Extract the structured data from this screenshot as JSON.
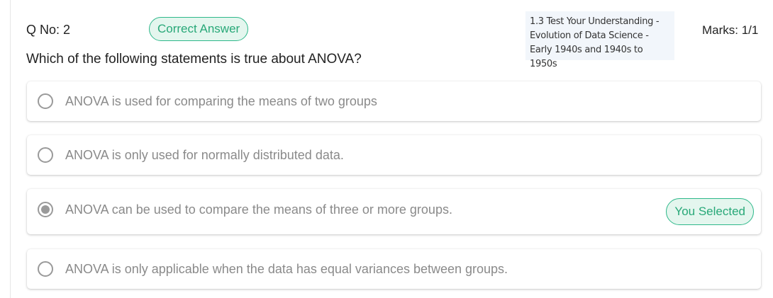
{
  "question_header": {
    "number": "Q No: 2",
    "status": "Correct Answer",
    "topic": "1.3 Test Your Understanding - Evolution of Data Science - Early 1940s and 1940s to 1950s",
    "marks": "Marks: 1/1"
  },
  "question": {
    "text": "Which of the following statements is true about ANOVA?"
  },
  "options": [
    {
      "text": "ANOVA is used for comparing the means of two groups",
      "selected": false
    },
    {
      "text": "ANOVA is only used for normally distributed data.",
      "selected": false
    },
    {
      "text": "ANOVA can be used to compare the means of three or more groups.",
      "selected": true,
      "badge": "You Selected"
    },
    {
      "text": "ANOVA is only applicable when the data has equal variances between groups.",
      "selected": false
    }
  ],
  "colors": {
    "accent_green": "#28a878",
    "pill_background": "#e4f6ee",
    "topic_background": "#f2f6fb",
    "option_text": "#8a8a8a"
  },
  "icons": {
    "radio_unselected": "radio-empty-icon",
    "radio_selected": "radio-filled-icon"
  }
}
